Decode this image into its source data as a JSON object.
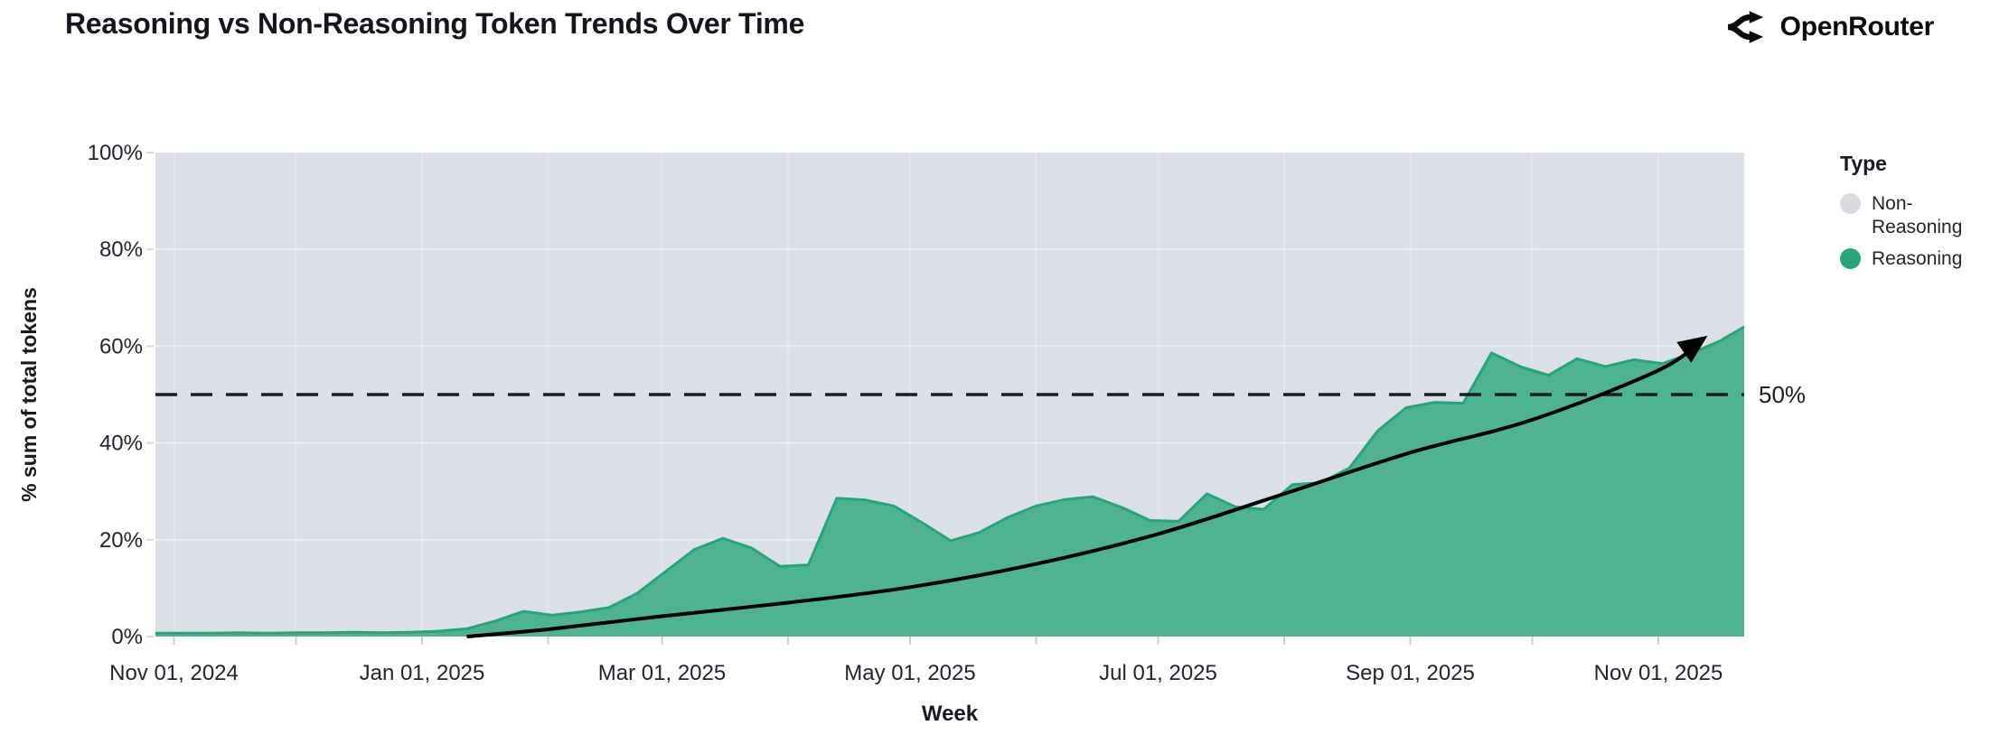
{
  "header": {
    "title": "Reasoning vs Non-Reasoning Token Trends Over Time",
    "brand": "OpenRouter"
  },
  "legend": {
    "title": "Type",
    "items": [
      {
        "label": "Non-Reasoning",
        "color": "#d9dbe1"
      },
      {
        "label": "Reasoning",
        "color": "#2ba47d"
      }
    ]
  },
  "chart_data": {
    "type": "area",
    "stacking": "percent",
    "title": "Reasoning vs Non-Reasoning Token Trends Over Time",
    "xlabel": "Week",
    "ylabel": "% sum of total tokens",
    "ylim": [
      0,
      100
    ],
    "grid": "on",
    "legend_position": "right",
    "plot_bg": "#dbdfe7",
    "y_ticks": [
      {
        "value": 0,
        "label": "0%"
      },
      {
        "value": 20,
        "label": "20%"
      },
      {
        "value": 40,
        "label": "40%"
      },
      {
        "value": 60,
        "label": "60%"
      },
      {
        "value": 80,
        "label": "80%"
      },
      {
        "value": 100,
        "label": "100%"
      }
    ],
    "x_ticks": [
      {
        "date": "2024-11-01",
        "label": "Nov 01, 2024"
      },
      {
        "date": "2024-12-01",
        "label": ""
      },
      {
        "date": "2025-01-01",
        "label": "Jan 01, 2025"
      },
      {
        "date": "2025-02-01",
        "label": ""
      },
      {
        "date": "2025-03-01",
        "label": "Mar 01, 2025"
      },
      {
        "date": "2025-04-01",
        "label": ""
      },
      {
        "date": "2025-05-01",
        "label": "May 01, 2025"
      },
      {
        "date": "2025-06-01",
        "label": ""
      },
      {
        "date": "2025-07-01",
        "label": "Jul 01, 2025"
      },
      {
        "date": "2025-08-01",
        "label": ""
      },
      {
        "date": "2025-09-01",
        "label": "Sep 01, 2025"
      },
      {
        "date": "2025-10-01",
        "label": ""
      },
      {
        "date": "2025-11-01",
        "label": "Nov 01, 2025"
      }
    ],
    "reference_line": {
      "value": 50,
      "label": "50%",
      "color": "#1b1d24"
    },
    "series": [
      {
        "name": "Reasoning",
        "fill_color": "#4db391",
        "edge_color": "#27a47c",
        "x": [
          "2024-10-27",
          "2024-11-03",
          "2024-11-10",
          "2024-11-17",
          "2024-11-24",
          "2024-12-01",
          "2024-12-08",
          "2024-12-15",
          "2024-12-22",
          "2024-12-29",
          "2025-01-05",
          "2025-01-12",
          "2025-01-19",
          "2025-01-26",
          "2025-02-02",
          "2025-02-09",
          "2025-02-16",
          "2025-02-23",
          "2025-03-02",
          "2025-03-09",
          "2025-03-16",
          "2025-03-23",
          "2025-03-30",
          "2025-04-06",
          "2025-04-13",
          "2025-04-20",
          "2025-04-27",
          "2025-05-04",
          "2025-05-11",
          "2025-05-18",
          "2025-05-25",
          "2025-06-01",
          "2025-06-08",
          "2025-06-15",
          "2025-06-22",
          "2025-06-29",
          "2025-07-06",
          "2025-07-13",
          "2025-07-20",
          "2025-07-27",
          "2025-08-03",
          "2025-08-10",
          "2025-08-17",
          "2025-08-24",
          "2025-08-31",
          "2025-09-07",
          "2025-09-14",
          "2025-09-21",
          "2025-09-28",
          "2025-10-05",
          "2025-10-12",
          "2025-10-19",
          "2025-10-26",
          "2025-11-02",
          "2025-11-09",
          "2025-11-16",
          "2025-11-23"
        ],
        "values": [
          0.7,
          0.7,
          0.7,
          0.8,
          0.7,
          0.8,
          0.8,
          0.9,
          0.8,
          0.9,
          1.1,
          1.6,
          3.2,
          5.2,
          4.4,
          5.1,
          6.0,
          9.0,
          13.5,
          18.0,
          20.3,
          18.3,
          14.5,
          14.8,
          28.6,
          28.2,
          27.0,
          23.5,
          19.8,
          21.5,
          24.6,
          27.0,
          28.3,
          28.9,
          26.7,
          24.0,
          23.8,
          29.5,
          26.8,
          26.3,
          31.4,
          31.8,
          34.8,
          42.5,
          47.3,
          48.4,
          48.2,
          58.6,
          55.8,
          54.0,
          57.4,
          55.8,
          57.2,
          56.4,
          58.5,
          61.0,
          64.0
        ]
      },
      {
        "name": "Non-Reasoning",
        "fill_color": "#dbdfe7",
        "note": "remainder of 100% stack above Reasoning"
      }
    ],
    "trend_arrow": {
      "color": "#000000",
      "points": [
        {
          "date": "2025-01-12",
          "value": 0
        },
        {
          "date": "2025-02-01",
          "value": 1.5
        },
        {
          "date": "2025-03-01",
          "value": 4.2
        },
        {
          "date": "2025-04-01",
          "value": 7.0
        },
        {
          "date": "2025-05-01",
          "value": 10.2
        },
        {
          "date": "2025-06-01",
          "value": 15.0
        },
        {
          "date": "2025-07-01",
          "value": 21.2
        },
        {
          "date": "2025-08-01",
          "value": 29.5
        },
        {
          "date": "2025-09-01",
          "value": 38.0
        },
        {
          "date": "2025-10-01",
          "value": 44.8
        },
        {
          "date": "2025-11-01",
          "value": 55.0
        },
        {
          "date": "2025-11-12",
          "value": 61.5
        }
      ]
    }
  }
}
